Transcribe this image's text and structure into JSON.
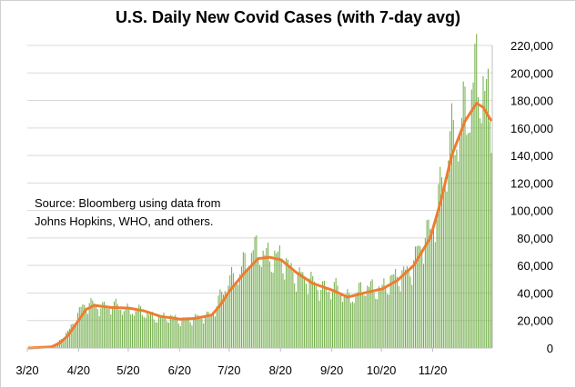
{
  "chart_data": {
    "type": "bar",
    "title": "U.S. Daily New Covid Cases (with 7-day avg)",
    "annotation": [
      "Source:  Bloomberg using data from",
      "Johns Hopkins, WHO, and others."
    ],
    "x_tick_labels": [
      "3/20",
      "4/20",
      "5/20",
      "6/20",
      "7/20",
      "8/20",
      "9/20",
      "10/20",
      "11/20"
    ],
    "y_tick_labels": [
      "0",
      "20,000",
      "40,000",
      "60,000",
      "80,000",
      "100,000",
      "120,000",
      "140,000",
      "160,000",
      "180,000",
      "200,000",
      "220,000"
    ],
    "ylim": [
      0,
      220000
    ],
    "y_axis_position": "right",
    "grid": "horizontal",
    "colors": {
      "bars": "#70ad47",
      "avg_line": "#ed7d31",
      "grid": "#d9d9d9"
    },
    "series": [
      {
        "type": "bar",
        "x_start": "2020-03-01",
        "x_end": "2020-12-06",
        "keypoints_daily": [
          [
            "2020-03-01",
            0
          ],
          [
            "2020-03-15",
            1000
          ],
          [
            "2020-03-20",
            5000
          ],
          [
            "2020-03-25",
            12000
          ],
          [
            "2020-04-01",
            26000
          ],
          [
            "2020-04-05",
            31000
          ],
          [
            "2020-04-10",
            32000
          ],
          [
            "2020-04-15",
            30000
          ],
          [
            "2020-04-20",
            29000
          ],
          [
            "2020-04-25",
            30000
          ],
          [
            "2020-05-01",
            28000
          ],
          [
            "2020-05-10",
            25000
          ],
          [
            "2020-05-20",
            22000
          ],
          [
            "2020-06-01",
            21000
          ],
          [
            "2020-06-10",
            21000
          ],
          [
            "2020-06-20",
            25000
          ],
          [
            "2020-06-25",
            36000
          ],
          [
            "2020-07-01",
            48000
          ],
          [
            "2020-07-10",
            62000
          ],
          [
            "2020-07-18",
            70000
          ],
          [
            "2020-07-25",
            68000
          ],
          [
            "2020-08-01",
            62000
          ],
          [
            "2020-08-10",
            55000
          ],
          [
            "2020-08-20",
            46000
          ],
          [
            "2020-09-01",
            43000
          ],
          [
            "2020-09-10",
            37000
          ],
          [
            "2020-09-20",
            42000
          ],
          [
            "2020-10-01",
            44000
          ],
          [
            "2020-10-10",
            50000
          ],
          [
            "2020-10-20",
            62000
          ],
          [
            "2020-10-30",
            85000
          ],
          [
            "2020-11-05",
            115000
          ],
          [
            "2020-11-12",
            145000
          ],
          [
            "2020-11-20",
            175000
          ],
          [
            "2020-11-27",
            190000
          ],
          [
            "2020-12-01",
            185000
          ],
          [
            "2020-12-06",
            175000
          ]
        ]
      },
      {
        "type": "line",
        "keypoints_7day_avg": [
          [
            "2020-03-01",
            0
          ],
          [
            "2020-03-15",
            800
          ],
          [
            "2020-03-20",
            3500
          ],
          [
            "2020-03-25",
            9000
          ],
          [
            "2020-04-01",
            21000
          ],
          [
            "2020-04-05",
            28000
          ],
          [
            "2020-04-10",
            31000
          ],
          [
            "2020-04-20",
            29500
          ],
          [
            "2020-05-01",
            29000
          ],
          [
            "2020-05-10",
            27000
          ],
          [
            "2020-05-20",
            23000
          ],
          [
            "2020-06-01",
            21000
          ],
          [
            "2020-06-10",
            21500
          ],
          [
            "2020-06-20",
            24000
          ],
          [
            "2020-06-25",
            31000
          ],
          [
            "2020-07-01",
            42000
          ],
          [
            "2020-07-10",
            55000
          ],
          [
            "2020-07-18",
            65000
          ],
          [
            "2020-07-25",
            66000
          ],
          [
            "2020-08-01",
            64000
          ],
          [
            "2020-08-10",
            55000
          ],
          [
            "2020-08-20",
            47000
          ],
          [
            "2020-09-01",
            42000
          ],
          [
            "2020-09-10",
            37000
          ],
          [
            "2020-09-20",
            40000
          ],
          [
            "2020-10-01",
            43000
          ],
          [
            "2020-10-10",
            49000
          ],
          [
            "2020-10-20",
            60000
          ],
          [
            "2020-10-30",
            80000
          ],
          [
            "2020-11-05",
            105000
          ],
          [
            "2020-11-12",
            140000
          ],
          [
            "2020-11-20",
            165000
          ],
          [
            "2020-11-27",
            178000
          ],
          [
            "2020-12-01",
            175000
          ],
          [
            "2020-12-06",
            165000
          ]
        ]
      }
    ]
  }
}
